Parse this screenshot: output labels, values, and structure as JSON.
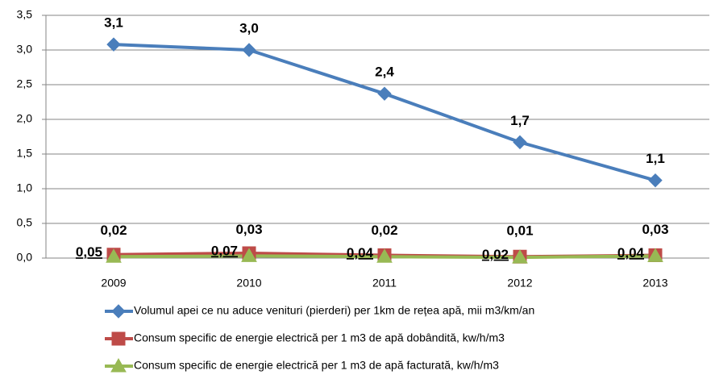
{
  "chart_data": {
    "type": "line",
    "categories": [
      "2009",
      "2010",
      "2011",
      "2012",
      "2013"
    ],
    "series": [
      {
        "name": "Volumul apei ce nu aduce venituri (pierderi) per 1km de rețea apă, mii m3/km/an",
        "color": "#4a7ebb",
        "marker": "diamond",
        "values": [
          3.08,
          3.0,
          2.37,
          1.67,
          1.12
        ],
        "value_labels": [
          "3,1",
          "3,0",
          "2,4",
          "1,7",
          "1,1"
        ]
      },
      {
        "name": "Consum specific de energie electrică per 1 m3 de apă dobândită, kw/h/m3",
        "color": "#be4b48",
        "marker": "square",
        "values": [
          0.05,
          0.07,
          0.04,
          0.02,
          0.04
        ],
        "value_labels": [
          "0,05",
          "0,07",
          "0,04",
          "0,02",
          "0,04"
        ]
      },
      {
        "name": "Consum specific de energie electrică per 1 m3 de apă facturată, kw/h/m3",
        "color": "#98b954",
        "marker": "triangle",
        "values": [
          0.02,
          0.03,
          0.02,
          0.01,
          0.03
        ],
        "value_labels": [
          "0,02",
          "0,03",
          "0,02",
          "0,01",
          "0,03"
        ]
      }
    ],
    "ylim": [
      0,
      3.5
    ],
    "yticks": [
      {
        "value": 0,
        "label": "0,0"
      },
      {
        "value": 0.5,
        "label": "0,5"
      },
      {
        "value": 1,
        "label": "1,0"
      },
      {
        "value": 1.5,
        "label": "1,5"
      },
      {
        "value": 2,
        "label": "2,0"
      },
      {
        "value": 2.5,
        "label": "2,5"
      },
      {
        "value": 3,
        "label": "3,0"
      },
      {
        "value": 3.5,
        "label": "3,5"
      }
    ],
    "grid": true,
    "legend": "bottom"
  }
}
